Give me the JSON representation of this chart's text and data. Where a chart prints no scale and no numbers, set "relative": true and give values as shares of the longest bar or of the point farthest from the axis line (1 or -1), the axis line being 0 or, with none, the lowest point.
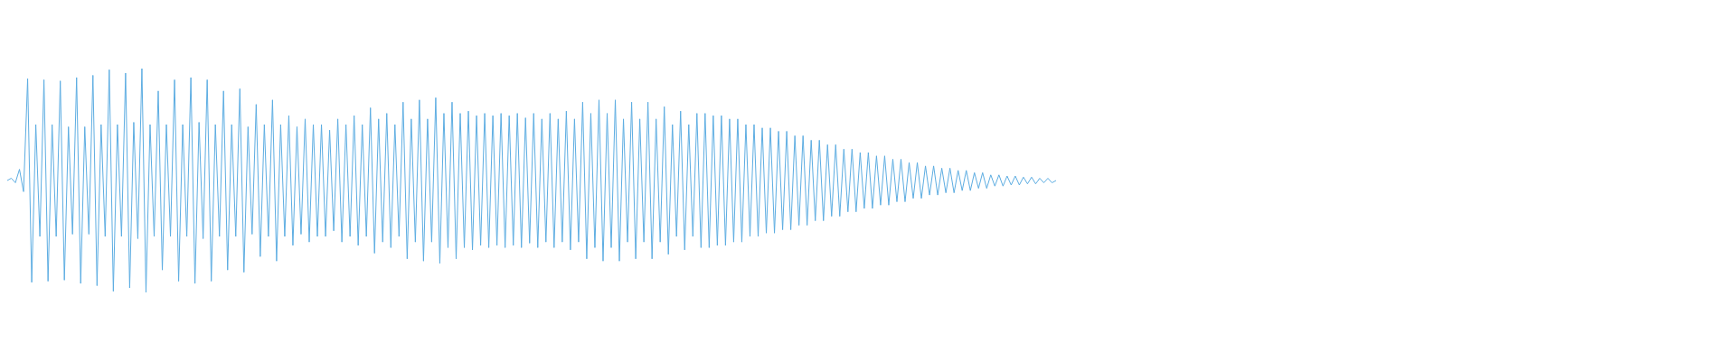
{
  "chart_data": {
    "type": "line",
    "relative": true,
    "legend": false,
    "categories": [
      null,
      null,
      null,
      null,
      null,
      null,
      null,
      null,
      null,
      null,
      null,
      null,
      null,
      null,
      null,
      null,
      null,
      null,
      null,
      null,
      null,
      null,
      null,
      null,
      null,
      null,
      null,
      null,
      null,
      null,
      null,
      null,
      null,
      null,
      null,
      null,
      null,
      null,
      null,
      null,
      null,
      null,
      null,
      null,
      null,
      null,
      null,
      null,
      null,
      null,
      null,
      null,
      null,
      null,
      null,
      null,
      null,
      null,
      null,
      null,
      null,
      null,
      null,
      null,
      null,
      null,
      null,
      null,
      null,
      null,
      null,
      null,
      null,
      null,
      null,
      null,
      null,
      null,
      null,
      null,
      null,
      null,
      null,
      null,
      null,
      null,
      null,
      null,
      null,
      null,
      null,
      null,
      null,
      null,
      null,
      null,
      null,
      null,
      null,
      null,
      null,
      null,
      null,
      null,
      null,
      null,
      null,
      null,
      null,
      null,
      null,
      null,
      null,
      null,
      null,
      null,
      null,
      null,
      null,
      null,
      null,
      null,
      null,
      null,
      null,
      null,
      null,
      null,
      null,
      null,
      null,
      null,
      null,
      null,
      null,
      null,
      null,
      null,
      null,
      null,
      null,
      null,
      null,
      null,
      null,
      null,
      null,
      null,
      null,
      null,
      null,
      null,
      null,
      null,
      null,
      null,
      null,
      null,
      null,
      null,
      null,
      null,
      null,
      null,
      null,
      null,
      null,
      null,
      null,
      null,
      null,
      null,
      null,
      null,
      null,
      null,
      null,
      null,
      null,
      null,
      null,
      null,
      null,
      null,
      null,
      null,
      null,
      null,
      null,
      null,
      null,
      null,
      null,
      null,
      null,
      null,
      null,
      null,
      null,
      null,
      null,
      null,
      null,
      null,
      null,
      null,
      null,
      null,
      null,
      null,
      null,
      null,
      null,
      null,
      null,
      null,
      null,
      null,
      null,
      null,
      null,
      null,
      null,
      null,
      null,
      null,
      null,
      null,
      null,
      null,
      null,
      null,
      null,
      null,
      null,
      null,
      null,
      null,
      null,
      null,
      null,
      null,
      null,
      null,
      null,
      null,
      null,
      null,
      null,
      null,
      null,
      null,
      null,
      null,
      null,
      null,
      null,
      null
    ],
    "series": [
      {
        "color": "#5dade2",
        "values": [
          0.5,
          0.51,
          0.49,
          0.55,
          0.45,
          0.955,
          0.045,
          0.75,
          0.25,
          0.95,
          0.05,
          0.75,
          0.25,
          0.945,
          0.055,
          0.74,
          0.26,
          0.96,
          0.04,
          0.74,
          0.26,
          0.97,
          0.03,
          0.75,
          0.25,
          0.995,
          0.005,
          0.75,
          0.25,
          0.98,
          0.02,
          0.76,
          0.24,
          1,
          0,
          0.75,
          0.25,
          0.9,
          0.1,
          0.75,
          0.25,
          0.95,
          0.05,
          0.75,
          0.25,
          0.96,
          0.04,
          0.76,
          0.24,
          0.95,
          0.05,
          0.75,
          0.25,
          0.9,
          0.1,
          0.75,
          0.25,
          0.91,
          0.09,
          0.74,
          0.26,
          0.84,
          0.16,
          0.75,
          0.25,
          0.86,
          0.14,
          0.75,
          0.25,
          0.79,
          0.21,
          0.74,
          0.26,
          0.775,
          0.225,
          0.75,
          0.25,
          0.75,
          0.25,
          0.725,
          0.275,
          0.775,
          0.225,
          0.75,
          0.25,
          0.79,
          0.21,
          0.75,
          0.25,
          0.825,
          0.175,
          0.775,
          0.225,
          0.8,
          0.2,
          0.75,
          0.25,
          0.85,
          0.15,
          0.775,
          0.225,
          0.86,
          0.14,
          0.775,
          0.225,
          0.87,
          0.13,
          0.8,
          0.2,
          0.85,
          0.15,
          0.8,
          0.2,
          0.81,
          0.19,
          0.79,
          0.21,
          0.8,
          0.2,
          0.79,
          0.21,
          0.8,
          0.2,
          0.79,
          0.21,
          0.8,
          0.2,
          0.78,
          0.22,
          0.8,
          0.2,
          0.775,
          0.225,
          0.8,
          0.2,
          0.775,
          0.225,
          0.81,
          0.19,
          0.775,
          0.225,
          0.85,
          0.15,
          0.8,
          0.2,
          0.86,
          0.14,
          0.8,
          0.2,
          0.86,
          0.14,
          0.775,
          0.225,
          0.85,
          0.15,
          0.775,
          0.225,
          0.85,
          0.15,
          0.775,
          0.225,
          0.83,
          0.17,
          0.75,
          0.25,
          0.81,
          0.19,
          0.75,
          0.25,
          0.8,
          0.2,
          0.8,
          0.2,
          0.79,
          0.21,
          0.79,
          0.21,
          0.775,
          0.225,
          0.775,
          0.225,
          0.75,
          0.25,
          0.75,
          0.25,
          0.735,
          0.265,
          0.735,
          0.265,
          0.72,
          0.28,
          0.72,
          0.28,
          0.7,
          0.3,
          0.7,
          0.3,
          0.68,
          0.32,
          0.68,
          0.32,
          0.66,
          0.34,
          0.66,
          0.34,
          0.64,
          0.36,
          0.64,
          0.36,
          0.625,
          0.375,
          0.625,
          0.375,
          0.61,
          0.39,
          0.61,
          0.39,
          0.595,
          0.405,
          0.595,
          0.405,
          0.58,
          0.42,
          0.58,
          0.42,
          0.565,
          0.435,
          0.565,
          0.435,
          0.555,
          0.445,
          0.555,
          0.445,
          0.545,
          0.455,
          0.545,
          0.455,
          0.535,
          0.465,
          0.535,
          0.465,
          0.525,
          0.475,
          0.525,
          0.475,
          0.52,
          0.48,
          0.52,
          0.48,
          0.515,
          0.485,
          0.515,
          0.485,
          0.51,
          0.49,
          0.51,
          0.49,
          0.5
        ]
      }
    ]
  }
}
